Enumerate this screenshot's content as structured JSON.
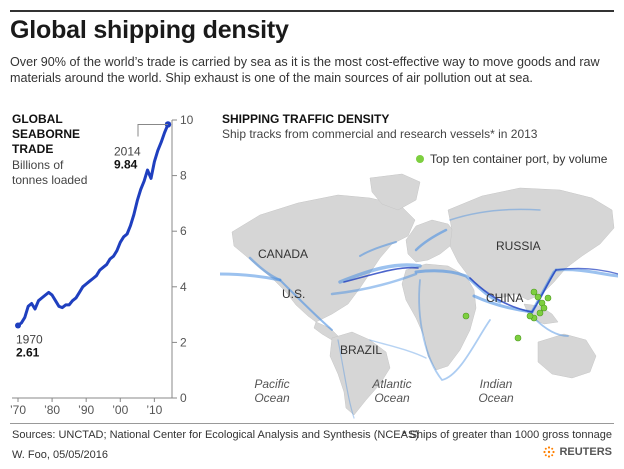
{
  "header": {
    "title": "Global shipping density",
    "intro": "Over 90% of the world’s trade is carried by sea as it is the most cost-effective way to move goods and raw materials around the world. Ship exhaust is one of the main sources of air pollution out at sea."
  },
  "chart_data": [
    {
      "type": "line",
      "title": "GLOBAL SEABORNE TRADE",
      "subtitle": "Billions of tonnes loaded",
      "ylim": [
        0,
        10
      ],
      "y_ticks": [
        "0",
        "2",
        "4",
        "6",
        "8",
        "10"
      ],
      "xlim": [
        1970,
        2014
      ],
      "x_ticks": [
        {
          "value": 1970,
          "label": "’70"
        },
        {
          "value": 1980,
          "label": "’80"
        },
        {
          "value": 1990,
          "label": "’90"
        },
        {
          "value": 2000,
          "label": "’00"
        },
        {
          "value": 2010,
          "label": "’10"
        }
      ],
      "grid": false,
      "line_color": "#1f3fbf",
      "series": [
        {
          "x": [
            1970,
            1971,
            1972,
            1973,
            1974,
            1975,
            1976,
            1977,
            1978,
            1979,
            1980,
            1981,
            1982,
            1983,
            1984,
            1985,
            1986,
            1987,
            1988,
            1989,
            1990,
            1991,
            1992,
            1993,
            1994,
            1995,
            1996,
            1997,
            1998,
            1999,
            2000,
            2001,
            2002,
            2003,
            2004,
            2005,
            2006,
            2007,
            2008,
            2009,
            2010,
            2011,
            2012,
            2013,
            2014
          ],
          "y": [
            2.61,
            2.7,
            2.9,
            3.3,
            3.4,
            3.2,
            3.5,
            3.6,
            3.7,
            3.8,
            3.7,
            3.5,
            3.3,
            3.25,
            3.35,
            3.35,
            3.5,
            3.6,
            3.8,
            4.0,
            4.1,
            4.2,
            4.3,
            4.4,
            4.6,
            4.7,
            4.8,
            5.0,
            5.1,
            5.3,
            5.6,
            5.8,
            5.9,
            6.2,
            6.6,
            7.1,
            7.5,
            7.8,
            8.2,
            7.9,
            8.5,
            8.9,
            9.2,
            9.55,
            9.84
          ]
        }
      ],
      "annotations": [
        {
          "x": 1970,
          "year": "1970",
          "value": "2.61"
        },
        {
          "x": 2014,
          "year": "2014",
          "value": "9.84"
        }
      ]
    },
    {
      "type": "map",
      "title": "SHIPPING TRAFFIC DENSITY",
      "subtitle": "Ship tracks from commercial and research vessels* in 2013",
      "legend": "Top ten container port, by volume",
      "legend_color": "#7dcf3f",
      "track_color": "#4a90e2",
      "land_color": "#d6d6d6",
      "labels": {
        "canada": "CANADA",
        "us": "U.S.",
        "brazil": "BRAZIL",
        "russia": "RUSSIA",
        "china": "CHINA",
        "pacific_1": "Pacific",
        "pacific_2": "Ocean",
        "atlantic_1": "Atlantic",
        "atlantic_2": "Ocean",
        "indian_1": "Indian",
        "indian_2": "Ocean"
      }
    }
  ],
  "footer": {
    "sources": "Sources: UNCTAD; National Center for Ecological Analysis and Synthesis (NCEAS)",
    "footnote": "* Ships of greater than 1000 gross tonnage",
    "credit": "W. Foo, 05/05/2016",
    "brand": "REUTERS"
  }
}
